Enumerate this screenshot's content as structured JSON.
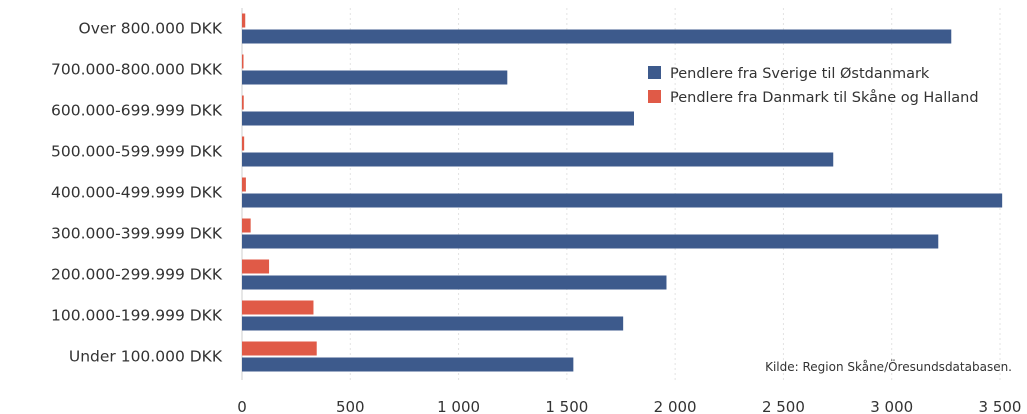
{
  "chart_data": {
    "type": "bar",
    "orientation": "horizontal",
    "categories": [
      "Over 800.000 DKK",
      "700.000-800.000 DKK",
      "600.000-699.999 DKK",
      "500.000-599.999 DKK",
      "400.000-499.999 DKK",
      "300.000-399.999 DKK",
      "200.000-299.999 DKK",
      "100.000-199.999 DKK",
      "Under 100.000 DKK"
    ],
    "series": [
      {
        "name": "Pendlere fra Danmark til Skåne og Halland",
        "color": "#e05a47",
        "values": [
          15,
          5,
          8,
          10,
          18,
          40,
          125,
          330,
          345
        ]
      },
      {
        "name": "Pendlere fra Sverige til Østdanmark",
        "color": "#3d5a8c",
        "values": [
          3275,
          1225,
          1810,
          2730,
          3510,
          3215,
          1960,
          1760,
          1530
        ]
      }
    ],
    "legend_order": [
      1,
      0
    ],
    "xlim": [
      0,
      3500
    ],
    "xticks": [
      0,
      500,
      1000,
      1500,
      2000,
      2500,
      3000,
      3500
    ],
    "xtick_labels": [
      "0",
      "500",
      "1 000",
      "1 500",
      "2 000",
      "2 500",
      "3 000",
      "3 500"
    ],
    "grid": true,
    "legend_position": "top-right",
    "source": "Kilde: Region Skåne/Öresundsdatabasen."
  }
}
